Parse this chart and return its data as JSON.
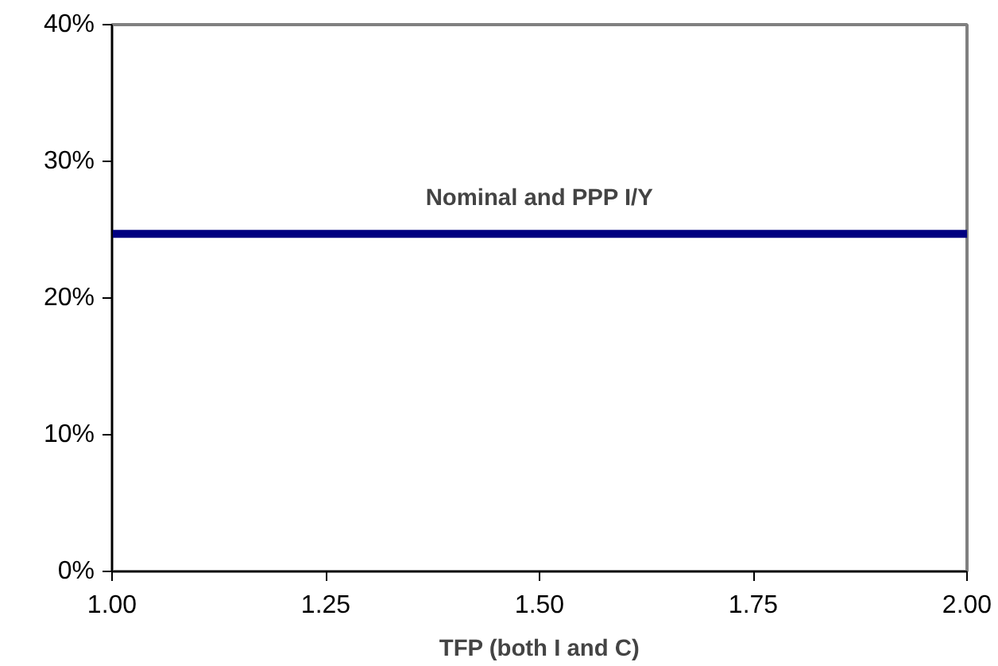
{
  "chart_data": {
    "type": "line",
    "xlabel": "TFP (both I and C)",
    "x": [
      1,
      2
    ],
    "series": [
      {
        "name": "Nominal and PPP I/Y",
        "color": "#000080",
        "values": [
          24.7,
          24.7
        ]
      }
    ],
    "xlim": [
      1,
      2
    ],
    "xticks": [
      {
        "value": 1,
        "label": "1.00"
      },
      {
        "value": 1.25,
        "label": "1.25"
      },
      {
        "value": 1.5,
        "label": "1.50"
      },
      {
        "value": 1.75,
        "label": "1.75"
      },
      {
        "value": 2,
        "label": "2.00"
      }
    ],
    "ylim": [
      0,
      40
    ],
    "yticks": [
      {
        "value": 0,
        "label": "0%"
      },
      {
        "value": 10,
        "label": "10%"
      },
      {
        "value": 20,
        "label": "20%"
      },
      {
        "value": 30,
        "label": "30%"
      },
      {
        "value": 40,
        "label": "40%"
      }
    ],
    "grid": false,
    "legend": false,
    "marker": "none",
    "line_style": "solid"
  }
}
